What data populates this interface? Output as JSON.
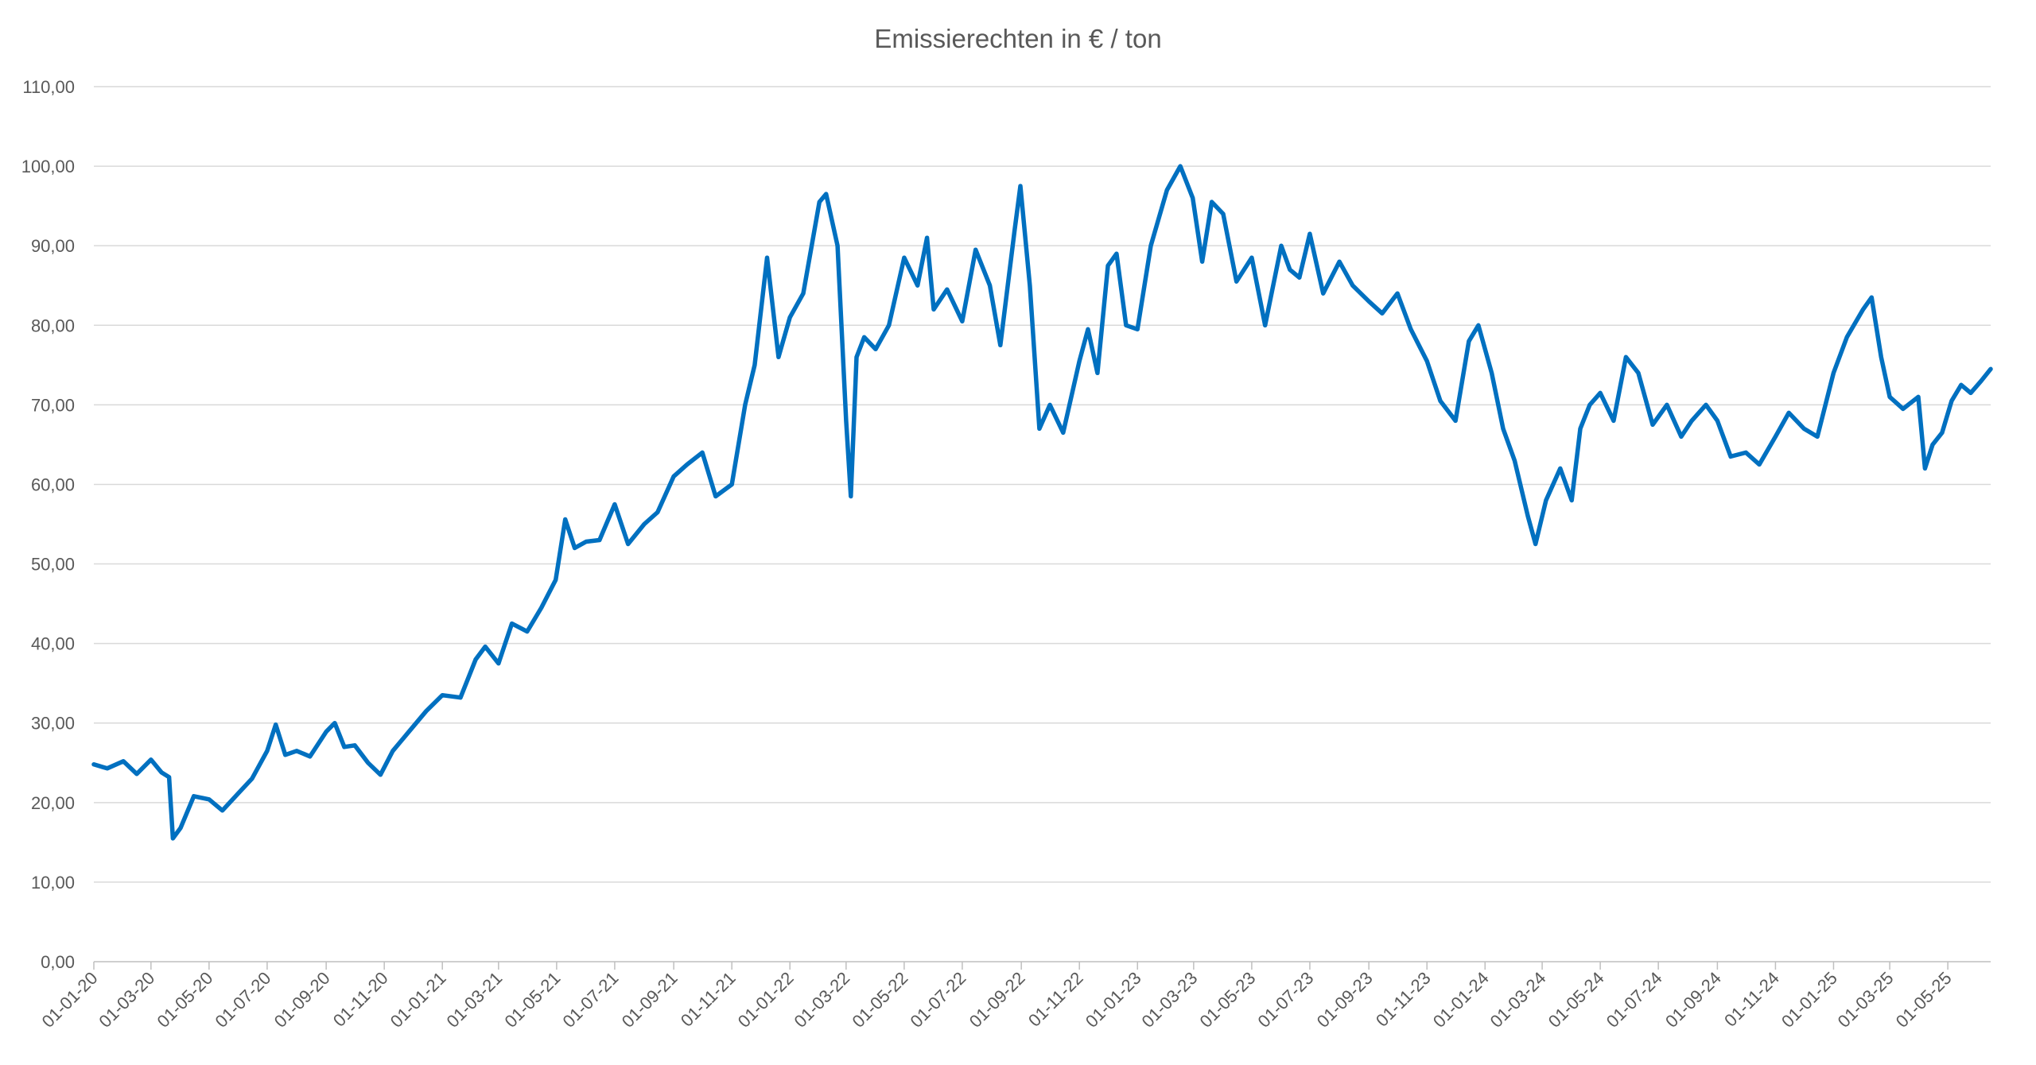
{
  "chart_data": {
    "type": "line",
    "title": "Emissierechten in € / ton",
    "xlabel": "",
    "ylabel": "",
    "ylim": [
      0,
      110
    ],
    "grid": true,
    "legend": "none",
    "line_color": "#0070C0",
    "y_ticks": [
      "0,00",
      "10,00",
      "20,00",
      "30,00",
      "40,00",
      "50,00",
      "60,00",
      "70,00",
      "80,00",
      "90,00",
      "100,00",
      "110,00"
    ],
    "x_ticks": [
      "01-01-20",
      "01-03-20",
      "01-05-20",
      "01-07-20",
      "01-09-20",
      "01-11-20",
      "01-01-21",
      "01-03-21",
      "01-05-21",
      "01-07-21",
      "01-09-21",
      "01-11-21",
      "01-01-22",
      "01-03-22",
      "01-05-22",
      "01-07-22",
      "01-09-22",
      "01-11-22",
      "01-01-23",
      "01-03-23",
      "01-05-23",
      "01-07-23",
      "01-09-23",
      "01-11-23",
      "01-01-24",
      "01-03-24",
      "01-05-24",
      "01-07-24",
      "01-09-24",
      "01-11-24",
      "01-01-25",
      "01-03-25",
      "01-05-25"
    ],
    "x_range": [
      "2020-01-01",
      "2025-06-15"
    ],
    "series": [
      {
        "points": [
          [
            "2020-01-01",
            24.8
          ],
          [
            "2020-01-15",
            24.3
          ],
          [
            "2020-02-01",
            25.2
          ],
          [
            "2020-02-15",
            23.6
          ],
          [
            "2020-03-01",
            25.4
          ],
          [
            "2020-03-12",
            23.8
          ],
          [
            "2020-03-20",
            23.2
          ],
          [
            "2020-03-24",
            15.5
          ],
          [
            "2020-04-01",
            16.8
          ],
          [
            "2020-04-15",
            20.8
          ],
          [
            "2020-05-01",
            20.4
          ],
          [
            "2020-05-15",
            19.0
          ],
          [
            "2020-06-01",
            21.2
          ],
          [
            "2020-06-15",
            23.0
          ],
          [
            "2020-07-01",
            26.5
          ],
          [
            "2020-07-10",
            29.8
          ],
          [
            "2020-07-20",
            26.0
          ],
          [
            "2020-08-01",
            26.5
          ],
          [
            "2020-08-15",
            25.8
          ],
          [
            "2020-09-01",
            28.9
          ],
          [
            "2020-09-10",
            30.0
          ],
          [
            "2020-09-20",
            27.0
          ],
          [
            "2020-10-01",
            27.2
          ],
          [
            "2020-10-15",
            25.0
          ],
          [
            "2020-10-28",
            23.5
          ],
          [
            "2020-11-10",
            26.5
          ],
          [
            "2020-12-01",
            29.5
          ],
          [
            "2020-12-15",
            31.5
          ],
          [
            "2021-01-01",
            33.5
          ],
          [
            "2021-01-20",
            33.2
          ],
          [
            "2021-02-05",
            38.0
          ],
          [
            "2021-02-15",
            39.6
          ],
          [
            "2021-03-01",
            37.5
          ],
          [
            "2021-03-15",
            42.5
          ],
          [
            "2021-03-31",
            41.5
          ],
          [
            "2021-04-15",
            44.5
          ],
          [
            "2021-04-30",
            48.0
          ],
          [
            "2021-05-10",
            55.6
          ],
          [
            "2021-05-20",
            52.0
          ],
          [
            "2021-06-01",
            52.8
          ],
          [
            "2021-06-15",
            53.0
          ],
          [
            "2021-07-01",
            57.5
          ],
          [
            "2021-07-15",
            52.5
          ],
          [
            "2021-08-01",
            55.0
          ],
          [
            "2021-08-15",
            56.5
          ],
          [
            "2021-09-01",
            61.0
          ],
          [
            "2021-09-15",
            62.5
          ],
          [
            "2021-10-01",
            64.0
          ],
          [
            "2021-10-15",
            58.5
          ],
          [
            "2021-11-01",
            60.0
          ],
          [
            "2021-11-15",
            70.0
          ],
          [
            "2021-11-25",
            75.0
          ],
          [
            "2021-12-08",
            88.5
          ],
          [
            "2021-12-20",
            76.0
          ],
          [
            "2022-01-01",
            81.0
          ],
          [
            "2022-01-15",
            84.0
          ],
          [
            "2022-02-01",
            95.5
          ],
          [
            "2022-02-08",
            96.5
          ],
          [
            "2022-02-20",
            90.0
          ],
          [
            "2022-03-01",
            68.0
          ],
          [
            "2022-03-06",
            58.5
          ],
          [
            "2022-03-12",
            76.0
          ],
          [
            "2022-03-20",
            78.5
          ],
          [
            "2022-04-01",
            77.0
          ],
          [
            "2022-04-15",
            80.0
          ],
          [
            "2022-05-01",
            88.5
          ],
          [
            "2022-05-15",
            85.0
          ],
          [
            "2022-05-25",
            91.0
          ],
          [
            "2022-06-01",
            82.0
          ],
          [
            "2022-06-15",
            84.5
          ],
          [
            "2022-07-01",
            80.5
          ],
          [
            "2022-07-15",
            89.5
          ],
          [
            "2022-07-30",
            85.0
          ],
          [
            "2022-08-10",
            77.5
          ],
          [
            "2022-08-25",
            92.0
          ],
          [
            "2022-08-31",
            97.5
          ],
          [
            "2022-09-10",
            85.0
          ],
          [
            "2022-09-20",
            67.0
          ],
          [
            "2022-10-01",
            70.0
          ],
          [
            "2022-10-15",
            66.5
          ],
          [
            "2022-11-01",
            75.5
          ],
          [
            "2022-11-10",
            79.5
          ],
          [
            "2022-11-20",
            74.0
          ],
          [
            "2022-12-01",
            87.5
          ],
          [
            "2022-12-10",
            89.0
          ],
          [
            "2022-12-20",
            80.0
          ],
          [
            "2023-01-01",
            79.5
          ],
          [
            "2023-01-15",
            90.0
          ],
          [
            "2023-02-01",
            97.0
          ],
          [
            "2023-02-15",
            100.0
          ],
          [
            "2023-02-28",
            96.0
          ],
          [
            "2023-03-10",
            88.0
          ],
          [
            "2023-03-20",
            95.5
          ],
          [
            "2023-04-01",
            94.0
          ],
          [
            "2023-04-15",
            85.5
          ],
          [
            "2023-05-01",
            88.5
          ],
          [
            "2023-05-15",
            80.0
          ],
          [
            "2023-06-01",
            90.0
          ],
          [
            "2023-06-10",
            87.0
          ],
          [
            "2023-06-20",
            86.0
          ],
          [
            "2023-07-01",
            91.5
          ],
          [
            "2023-07-15",
            84.0
          ],
          [
            "2023-08-01",
            88.0
          ],
          [
            "2023-08-15",
            85.0
          ],
          [
            "2023-09-01",
            83.0
          ],
          [
            "2023-09-15",
            81.5
          ],
          [
            "2023-10-01",
            84.0
          ],
          [
            "2023-10-15",
            79.5
          ],
          [
            "2023-11-01",
            75.5
          ],
          [
            "2023-11-15",
            70.5
          ],
          [
            "2023-12-01",
            68.0
          ],
          [
            "2023-12-15",
            78.0
          ],
          [
            "2023-12-25",
            80.0
          ],
          [
            "2024-01-08",
            74.0
          ],
          [
            "2024-01-20",
            67.0
          ],
          [
            "2024-02-01",
            63.0
          ],
          [
            "2024-02-15",
            56.0
          ],
          [
            "2024-02-23",
            52.5
          ],
          [
            "2024-03-05",
            58.0
          ],
          [
            "2024-03-20",
            62.0
          ],
          [
            "2024-04-01",
            58.0
          ],
          [
            "2024-04-10",
            67.0
          ],
          [
            "2024-04-20",
            70.0
          ],
          [
            "2024-05-01",
            71.5
          ],
          [
            "2024-05-15",
            68.0
          ],
          [
            "2024-05-28",
            76.0
          ],
          [
            "2024-06-10",
            74.0
          ],
          [
            "2024-06-25",
            67.5
          ],
          [
            "2024-07-10",
            70.0
          ],
          [
            "2024-07-25",
            66.0
          ],
          [
            "2024-08-05",
            68.0
          ],
          [
            "2024-08-20",
            70.0
          ],
          [
            "2024-09-01",
            68.0
          ],
          [
            "2024-09-15",
            63.5
          ],
          [
            "2024-10-01",
            64.0
          ],
          [
            "2024-10-15",
            62.5
          ],
          [
            "2024-11-01",
            66.0
          ],
          [
            "2024-11-15",
            69.0
          ],
          [
            "2024-12-01",
            67.0
          ],
          [
            "2024-12-15",
            66.0
          ],
          [
            "2025-01-01",
            74.0
          ],
          [
            "2025-01-15",
            78.5
          ],
          [
            "2025-02-01",
            82.0
          ],
          [
            "2025-02-10",
            83.5
          ],
          [
            "2025-02-20",
            76.0
          ],
          [
            "2025-03-01",
            71.0
          ],
          [
            "2025-03-15",
            69.5
          ],
          [
            "2025-03-31",
            71.0
          ],
          [
            "2025-04-07",
            62.0
          ],
          [
            "2025-04-15",
            65.0
          ],
          [
            "2025-04-25",
            66.5
          ],
          [
            "2025-05-05",
            70.5
          ],
          [
            "2025-05-15",
            72.5
          ],
          [
            "2025-05-25",
            71.5
          ],
          [
            "2025-06-05",
            73.0
          ],
          [
            "2025-06-15",
            74.5
          ]
        ]
      }
    ]
  }
}
